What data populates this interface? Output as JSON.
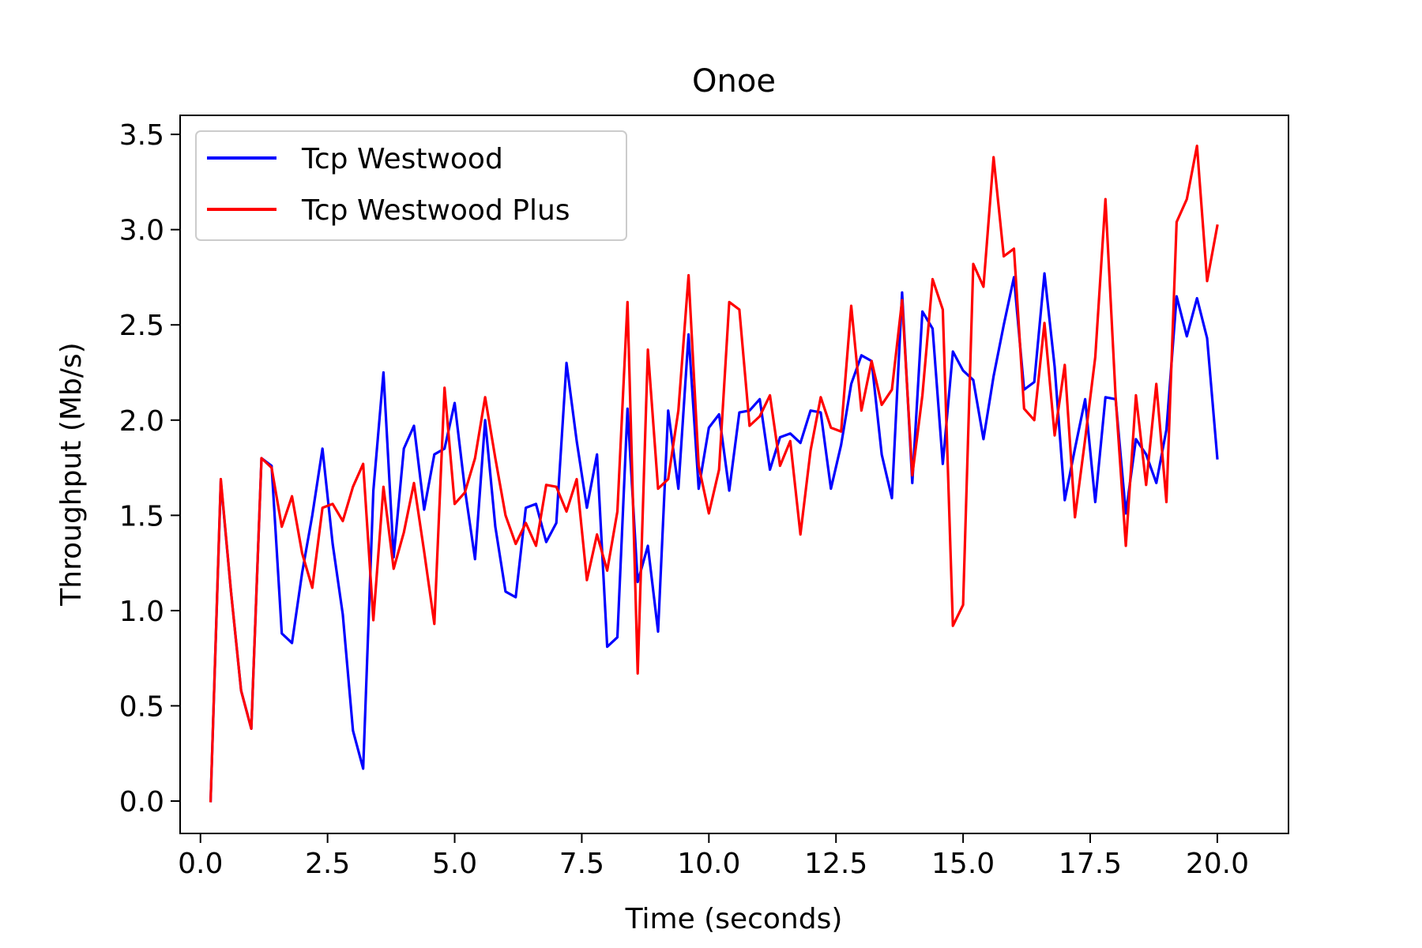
{
  "chart_data": {
    "type": "line",
    "title": "Onoe",
    "xlabel": "Time (seconds)",
    "ylabel": "Throughput (Mb/s)",
    "xlim": [
      -0.4,
      21.4
    ],
    "ylim": [
      -0.17,
      3.6
    ],
    "xticks": [
      0.0,
      2.5,
      5.0,
      7.5,
      10.0,
      12.5,
      15.0,
      17.5,
      20.0
    ],
    "xtick_labels": [
      "0.0",
      "2.5",
      "5.0",
      "7.5",
      "10.0",
      "12.5",
      "15.0",
      "17.5",
      "20.0"
    ],
    "yticks": [
      0.0,
      0.5,
      1.0,
      1.5,
      2.0,
      2.5,
      3.0,
      3.5
    ],
    "ytick_labels": [
      "0.0",
      "0.5",
      "1.0",
      "1.5",
      "2.0",
      "2.5",
      "3.0",
      "3.5"
    ],
    "grid": false,
    "legend_position": "top-left",
    "x": [
      0.2,
      0.4,
      0.6,
      0.8,
      1.0,
      1.2,
      1.4,
      1.6,
      1.8,
      2.0,
      2.2,
      2.4,
      2.6,
      2.8,
      3.0,
      3.2,
      3.4,
      3.6,
      3.8,
      4.0,
      4.2,
      4.4,
      4.6,
      4.8,
      5.0,
      5.2,
      5.4,
      5.6,
      5.8,
      6.0,
      6.2,
      6.4,
      6.6,
      6.8,
      7.0,
      7.2,
      7.4,
      7.6,
      7.8,
      8.0,
      8.2,
      8.4,
      8.6,
      8.8,
      9.0,
      9.2,
      9.4,
      9.6,
      9.8,
      10.0,
      10.2,
      10.4,
      10.6,
      10.8,
      11.0,
      11.2,
      11.4,
      11.6,
      11.8,
      12.0,
      12.2,
      12.4,
      12.6,
      12.8,
      13.0,
      13.2,
      13.4,
      13.6,
      13.8,
      14.0,
      14.2,
      14.4,
      14.6,
      14.8,
      15.0,
      15.2,
      15.4,
      15.6,
      15.8,
      16.0,
      16.2,
      16.4,
      16.6,
      16.8,
      17.0,
      17.2,
      17.4,
      17.6,
      17.8,
      18.0,
      18.2,
      18.4,
      18.6,
      18.8,
      19.0,
      19.2,
      19.4,
      19.6,
      19.8,
      20.0
    ],
    "series": [
      {
        "name": "Tcp Westwood",
        "color": "#0000ff",
        "values": [
          0.0,
          1.68,
          1.1,
          0.58,
          0.38,
          1.8,
          1.76,
          0.88,
          0.83,
          1.2,
          1.5,
          1.85,
          1.35,
          0.98,
          0.37,
          0.17,
          1.63,
          2.25,
          1.28,
          1.85,
          1.97,
          1.53,
          1.82,
          1.85,
          2.09,
          1.64,
          1.27,
          2.0,
          1.44,
          1.1,
          1.07,
          1.54,
          1.56,
          1.36,
          1.46,
          2.3,
          1.89,
          1.54,
          1.82,
          0.81,
          0.86,
          2.06,
          1.15,
          1.34,
          0.89,
          2.05,
          1.64,
          2.45,
          1.64,
          1.96,
          2.03,
          1.63,
          2.04,
          2.05,
          2.11,
          1.74,
          1.91,
          1.93,
          1.88,
          2.05,
          2.04,
          1.64,
          1.87,
          2.19,
          2.34,
          2.31,
          1.82,
          1.59,
          2.67,
          1.67,
          2.57,
          2.48,
          1.77,
          2.36,
          2.26,
          2.21,
          1.9,
          2.23,
          2.5,
          2.75,
          2.16,
          2.2,
          2.77,
          2.28,
          1.58,
          1.85,
          2.11,
          1.57,
          2.12,
          2.11,
          1.51,
          1.9,
          1.82,
          1.67,
          1.95,
          2.65,
          2.44,
          2.64,
          2.43,
          1.8
        ]
      },
      {
        "name": "Tcp Westwood Plus",
        "color": "#ff0000",
        "values": [
          0.0,
          1.69,
          1.1,
          0.58,
          0.38,
          1.8,
          1.75,
          1.44,
          1.6,
          1.3,
          1.12,
          1.54,
          1.56,
          1.47,
          1.65,
          1.77,
          0.95,
          1.65,
          1.22,
          1.41,
          1.67,
          1.31,
          0.93,
          2.17,
          1.56,
          1.62,
          1.8,
          2.12,
          1.8,
          1.5,
          1.35,
          1.46,
          1.34,
          1.66,
          1.65,
          1.52,
          1.69,
          1.16,
          1.4,
          1.21,
          1.52,
          2.62,
          0.67,
          2.37,
          1.64,
          1.69,
          2.05,
          2.76,
          1.76,
          1.51,
          1.74,
          2.62,
          2.58,
          1.97,
          2.02,
          2.13,
          1.76,
          1.89,
          1.4,
          1.84,
          2.12,
          1.96,
          1.94,
          2.6,
          2.05,
          2.31,
          2.08,
          2.16,
          2.63,
          1.71,
          2.13,
          2.74,
          2.58,
          0.92,
          1.03,
          2.82,
          2.7,
          3.38,
          2.86,
          2.9,
          2.06,
          2.0,
          2.51,
          1.92,
          2.29,
          1.49,
          1.9,
          2.33,
          3.16,
          2.12,
          1.34,
          2.13,
          1.66,
          2.19,
          1.57,
          3.04,
          3.16,
          3.44,
          2.73,
          3.02
        ]
      }
    ]
  }
}
